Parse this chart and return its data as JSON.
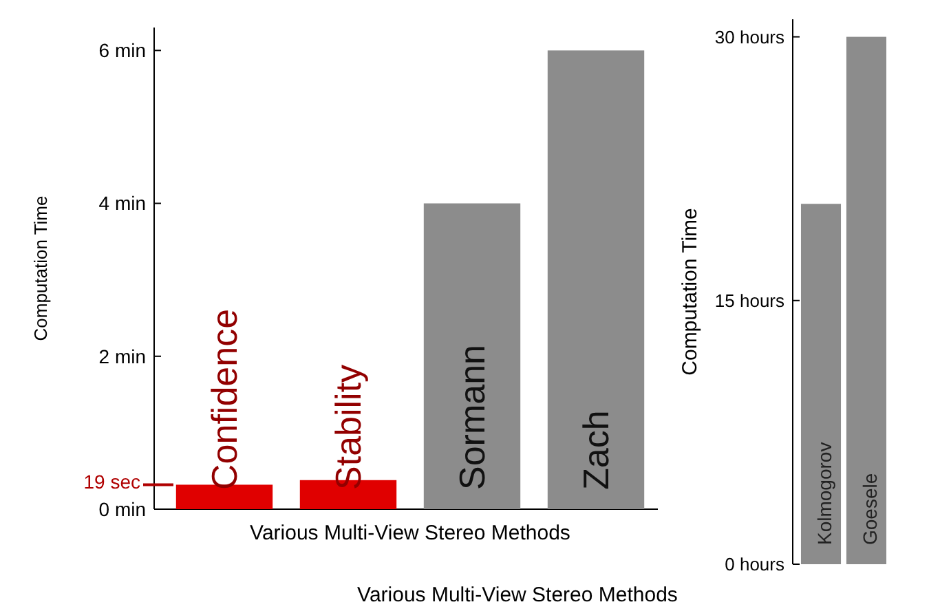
{
  "chart_data": [
    {
      "type": "bar",
      "ylabel": "Computation Time",
      "xlabel": "Various Multi-View Stereo Methods",
      "categories": [
        "Kolmogorov",
        "Goesele"
      ],
      "values": [
        20.5,
        30
      ],
      "colors": [
        "#8c8c8c",
        "#8c8c8c"
      ],
      "ylim": [
        0,
        31
      ],
      "yticks": [
        {
          "value": 0,
          "label": "0 hours"
        },
        {
          "value": 15,
          "label": "15 hours"
        },
        {
          "value": 30,
          "label": "30 hours"
        }
      ]
    },
    {
      "type": "bar",
      "ylabel": "Computation Time",
      "xlabel": "Various Multi-View Stereo Methods",
      "categories": [
        "Confidence",
        "Stability",
        "Sormann",
        "Zach"
      ],
      "values": [
        0.32,
        0.38,
        4,
        6
      ],
      "colors": [
        "#e00000",
        "#e00000",
        "#8c8c8c",
        "#8c8c8c"
      ],
      "ylim": [
        0,
        6.3
      ],
      "yticks": [
        {
          "value": 0,
          "label": "0 min"
        },
        {
          "value": 2,
          "label": "2 min"
        },
        {
          "value": 4,
          "label": "4 min"
        },
        {
          "value": 6,
          "label": "6 min"
        }
      ],
      "ref_lines": [
        {
          "axis": "y",
          "value": 0.32,
          "label": "19 sec",
          "color": "#b00000"
        }
      ]
    }
  ]
}
